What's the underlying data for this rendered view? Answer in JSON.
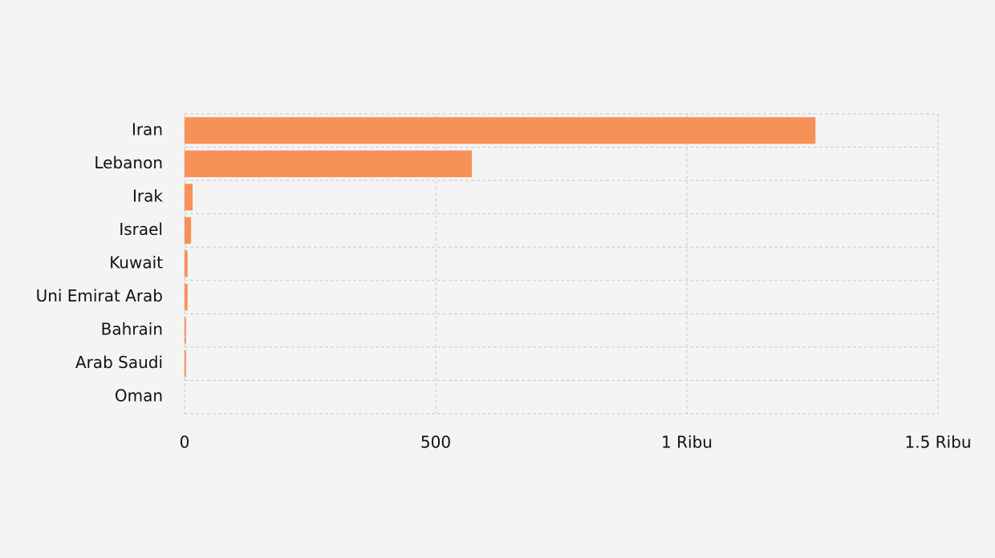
{
  "chart_data": {
    "type": "bar",
    "orientation": "horizontal",
    "categories": [
      "Iran",
      "Lebanon",
      "Irak",
      "Israel",
      "Kuwait",
      "Uni Emirat Arab",
      "Bahrain",
      "Arab Saudi",
      "Oman"
    ],
    "values": [
      1256,
      572,
      16,
      13,
      6,
      6,
      3,
      3,
      0
    ],
    "color": "#f58b4f",
    "xlim": [
      0,
      1500
    ],
    "xticks": [
      0,
      500,
      {
        "value": 1000,
        "label": "1 Ribu"
      },
      {
        "value": 1500,
        "label": "1.5 Ribu"
      }
    ],
    "grid": true
  }
}
